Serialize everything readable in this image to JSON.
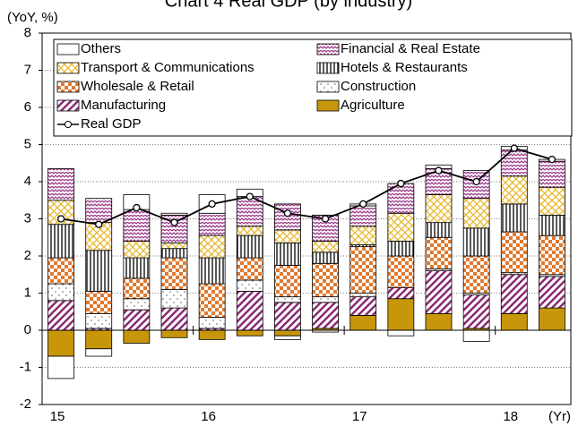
{
  "chart_data": {
    "type": "bar",
    "title": "Chart 4 Real GDP (by industry)",
    "y_label": "(YoY, %)",
    "x_label": "(Yr)",
    "categories": [
      "15",
      null,
      null,
      null,
      "16",
      null,
      null,
      null,
      "17",
      null,
      null,
      null,
      "18",
      null
    ],
    "ylim": [
      -2,
      8
    ],
    "yticks": [
      -2,
      -1,
      0,
      1,
      2,
      3,
      4,
      5,
      6,
      7,
      8
    ],
    "grid": true,
    "stacked": true,
    "legend": "top",
    "series": [
      {
        "name": "Others",
        "color": "#ffffff",
        "pattern": "none",
        "values": [
          -0.6,
          -0.2,
          0.4,
          0.05,
          0.5,
          0.2,
          -0.1,
          -0.05,
          0.05,
          -0.15,
          0.1,
          -0.3,
          0.1,
          0.05
        ]
      },
      {
        "name": "Financial & Real Estate",
        "color": "#9b3c8c",
        "pattern": "zigzag",
        "values": [
          0.85,
          0.65,
          0.85,
          0.75,
          0.6,
          0.8,
          0.7,
          0.7,
          0.55,
          0.8,
          0.7,
          0.75,
          0.7,
          0.7
        ]
      },
      {
        "name": "Transport & Communications",
        "color": "#e8b830",
        "pattern": "cross",
        "values": [
          0.65,
          0.75,
          0.45,
          0.15,
          0.6,
          0.25,
          0.35,
          0.3,
          0.5,
          0.75,
          0.75,
          0.8,
          0.75,
          0.75
        ]
      },
      {
        "name": "Hotels & Restaurants",
        "color": "#000000",
        "pattern": "vlines",
        "values": [
          0.9,
          1.1,
          0.55,
          0.25,
          0.7,
          0.6,
          0.6,
          0.3,
          0.05,
          0.4,
          0.4,
          0.75,
          0.75,
          0.55
        ]
      },
      {
        "name": "Wholesale & Retail",
        "color": "#e07a30",
        "pattern": "checker",
        "values": [
          0.7,
          0.6,
          0.55,
          0.85,
          0.9,
          0.6,
          0.85,
          0.9,
          1.25,
          0.85,
          0.85,
          1.0,
          1.1,
          1.05
        ]
      },
      {
        "name": "Construction",
        "color": "#606060",
        "pattern": "dots",
        "values": [
          0.45,
          0.4,
          0.3,
          0.5,
          0.3,
          0.3,
          0.15,
          0.15,
          0.1,
          0.0,
          0.05,
          0.05,
          0.05,
          0.05
        ]
      },
      {
        "name": "Manufacturing",
        "color": "#8a2a72",
        "pattern": "diag",
        "values": [
          0.8,
          0.05,
          0.55,
          0.6,
          0.05,
          1.05,
          0.75,
          0.7,
          0.5,
          0.3,
          1.15,
          0.9,
          1.05,
          0.85
        ]
      },
      {
        "name": "Agriculture",
        "color": "#c8960a",
        "pattern": "solid",
        "values": [
          -0.7,
          -0.5,
          -0.35,
          -0.2,
          -0.25,
          -0.15,
          -0.15,
          0.05,
          0.4,
          0.85,
          0.45,
          0.05,
          0.45,
          0.6
        ]
      }
    ],
    "line": {
      "name": "Real GDP",
      "color": "#000000",
      "values": [
        3.0,
        2.85,
        3.3,
        2.9,
        3.4,
        3.6,
        3.15,
        3.0,
        3.4,
        3.95,
        4.3,
        4.0,
        4.9,
        4.6
      ]
    }
  }
}
